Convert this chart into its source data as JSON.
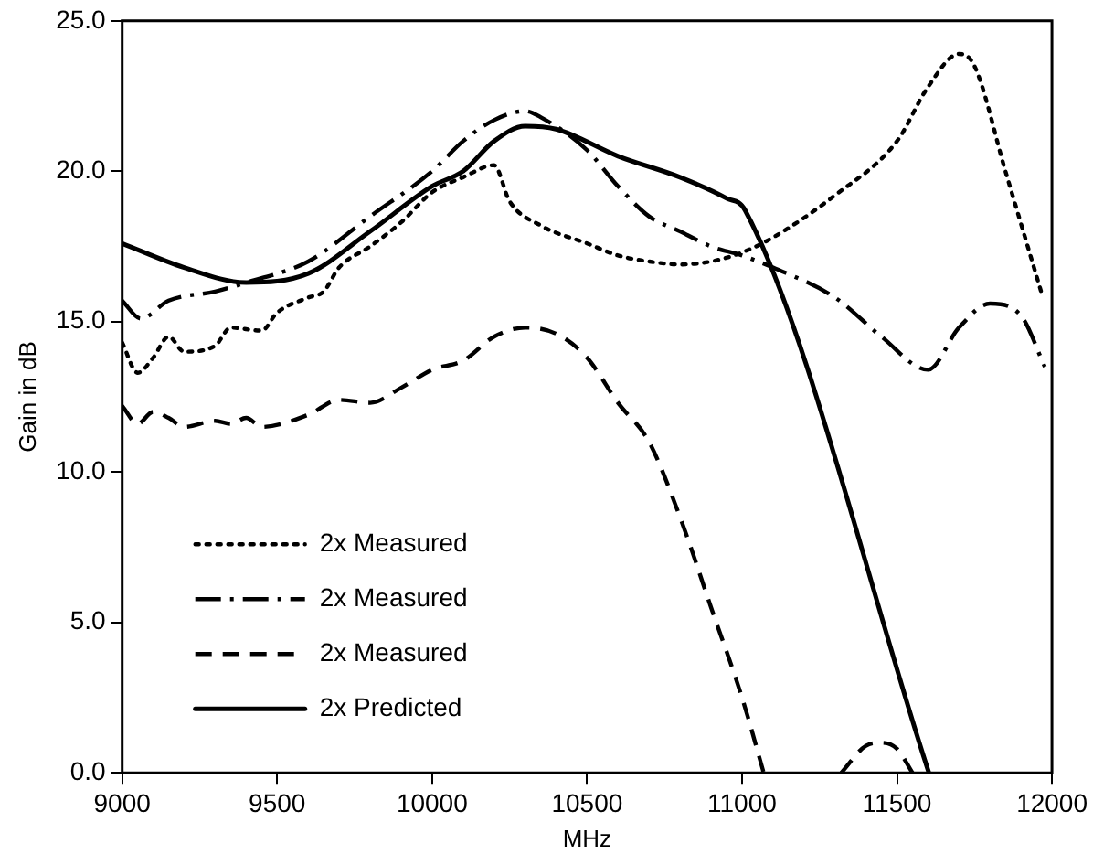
{
  "chart_data": {
    "type": "line",
    "xlabel": "MHz",
    "ylabel": "Gain in dB",
    "xlim": [
      9000,
      12000
    ],
    "xticks": [
      9000,
      9500,
      10000,
      10500,
      11000,
      11500,
      12000
    ],
    "ylim": [
      0,
      25
    ],
    "yticks": [
      {
        "value": 0,
        "label": "0.0"
      },
      {
        "value": 5,
        "label": "5.0"
      },
      {
        "value": 10,
        "label": "10.0"
      },
      {
        "value": 15,
        "label": "15.0"
      },
      {
        "value": 20,
        "label": "20.0"
      },
      {
        "value": 25,
        "label": "25.0"
      }
    ],
    "grid": false,
    "legend": "bottom left",
    "marker": "none",
    "series": [
      {
        "name": "2x Measured",
        "color": "#000000",
        "line_style": "dotted",
        "x": [
          9000,
          9050,
          9100,
          9150,
          9200,
          9300,
          9350,
          9450,
          9500,
          9600,
          9650,
          9700,
          9800,
          9900,
          10000,
          10100,
          10200,
          10250,
          10350,
          10500,
          10600,
          10700,
          10800,
          10900,
          11000,
          11100,
          11300,
          11500,
          11600,
          11700,
          11750,
          11850,
          11965
        ],
        "values": [
          14.3,
          13.3,
          13.8,
          14.5,
          14.0,
          14.2,
          14.8,
          14.7,
          15.3,
          15.8,
          16.0,
          16.8,
          17.5,
          18.3,
          19.3,
          19.8,
          20.2,
          19.0,
          18.2,
          17.6,
          17.2,
          17.0,
          16.9,
          17.0,
          17.3,
          17.8,
          19.2,
          21.0,
          22.8,
          23.9,
          23.5,
          20.0,
          16.0
        ]
      },
      {
        "name": "2x Measured",
        "color": "#000000",
        "line_style": "dashdot",
        "x": [
          9000,
          9060,
          9150,
          9300,
          9400,
          9600,
          9800,
          10000,
          10100,
          10200,
          10300,
          10350,
          10500,
          10600,
          10700,
          10800,
          10900,
          11000,
          11100,
          11300,
          11450,
          11600,
          11700,
          11800,
          11900,
          11977
        ],
        "values": [
          15.7,
          15.1,
          15.7,
          16.0,
          16.3,
          17.0,
          18.5,
          20.0,
          21.0,
          21.7,
          22.0,
          21.8,
          20.7,
          19.5,
          18.5,
          18.0,
          17.5,
          17.2,
          16.8,
          15.8,
          14.5,
          13.4,
          14.8,
          15.6,
          15.2,
          13.5
        ]
      },
      {
        "name": "2x Measured",
        "color": "#000000",
        "line_style": "dashed",
        "x": [
          9000,
          9050,
          9100,
          9150,
          9200,
          9300,
          9350,
          9400,
          9450,
          9600,
          9700,
          9800,
          9900,
          10000,
          10100,
          10200,
          10300,
          10400,
          10500,
          10600,
          10700,
          10800,
          10900,
          11000,
          11070,
          11200,
          11320,
          11400,
          11450,
          11500,
          11550
        ],
        "values": [
          12.2,
          11.6,
          12.0,
          11.8,
          11.5,
          11.7,
          11.6,
          11.8,
          11.5,
          11.9,
          12.4,
          12.3,
          12.8,
          13.4,
          13.7,
          14.5,
          14.8,
          14.6,
          13.8,
          12.3,
          11.0,
          8.5,
          5.5,
          2.5,
          0,
          null,
          0,
          0.9,
          1.0,
          0.8,
          0
        ]
      },
      {
        "name": "2x Predicted",
        "color": "#000000",
        "line_style": "solid",
        "x": [
          9000,
          9200,
          9400,
          9600,
          9800,
          10000,
          10100,
          10200,
          10300,
          10400,
          10600,
          10800,
          10950,
          11010,
          11603
        ],
        "values": [
          17.6,
          16.8,
          16.3,
          16.6,
          18.0,
          19.5,
          20.0,
          21.0,
          21.5,
          21.4,
          20.5,
          19.8,
          19.1,
          18.7,
          0
        ]
      }
    ]
  }
}
